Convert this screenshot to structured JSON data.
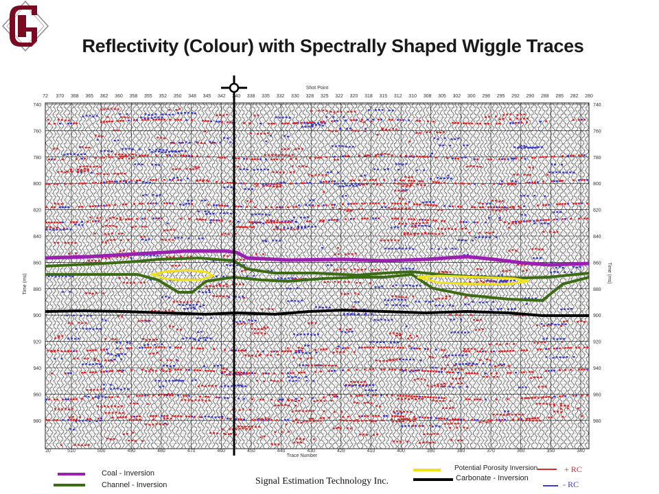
{
  "title": "Reflectivity (Colour) with Spectrally Shaped Wiggle Traces",
  "plot": {
    "top_label": "Shot Point",
    "bottom_label": "Trace Number",
    "left_axis_label": "Time (ms)",
    "right_axis_label": "Time (ms)",
    "shot_points": [
      "72",
      "370",
      "368",
      "365",
      "362",
      "360",
      "358",
      "355",
      "352",
      "350",
      "348",
      "345",
      "342",
      "340",
      "338",
      "335",
      "332",
      "330",
      "328",
      "325",
      "322",
      "320",
      "318",
      "315",
      "312",
      "310",
      "308",
      "305",
      "302",
      "300",
      "298",
      "295",
      "292",
      "290",
      "288",
      "285",
      "282",
      "280"
    ],
    "trace_numbers": [
      "20",
      "510",
      "500",
      "490",
      "480",
      "470",
      "460",
      "450",
      "440",
      "430",
      "420",
      "410",
      "400",
      "390",
      "380",
      "370",
      "360",
      "350",
      "340"
    ],
    "time_ticks": [
      "740",
      "760",
      "780",
      "800",
      "820",
      "840",
      "860",
      "880",
      "900",
      "920",
      "940",
      "960",
      "980"
    ],
    "colors": {
      "positive_rc": "#d8282a",
      "negative_rc": "#3a3ad0",
      "coal": "#9b1fb0",
      "channel": "#3b6b12",
      "porosity": "#f2e21a",
      "carbonate": "#000000"
    }
  },
  "legend": {
    "coal": "Coal - Inversion",
    "channel": "Channel - Inversion",
    "porosity": "Potential Porosity Inversion",
    "carbonate": "Carbonate - Inversion",
    "pos_rc": "+ RC",
    "neg_rc": "- RC"
  },
  "footer": {
    "company": "Signal Estimation Technology Inc."
  }
}
